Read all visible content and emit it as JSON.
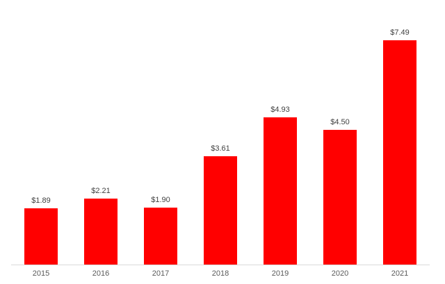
{
  "chart_data": {
    "type": "bar",
    "title": "",
    "xlabel": "",
    "ylabel": "",
    "categories": [
      "2015",
      "2016",
      "2017",
      "2018",
      "2019",
      "2020",
      "2021"
    ],
    "values": [
      1.89,
      2.21,
      1.9,
      3.61,
      4.93,
      4.5,
      7.49
    ],
    "data_labels": [
      "$1.89",
      "$2.21",
      "$1.90",
      "$3.61",
      "$4.93",
      "$4.50",
      "$7.49"
    ],
    "ylim": [
      0,
      8
    ],
    "grid": false,
    "legend": false,
    "yaxis_visible": false,
    "colors": {
      "bar": "#FF0000",
      "data_label": "#404040",
      "tick_label": "#595959",
      "axis_line": "#D9D9D9",
      "background": "#FFFFFF"
    }
  }
}
